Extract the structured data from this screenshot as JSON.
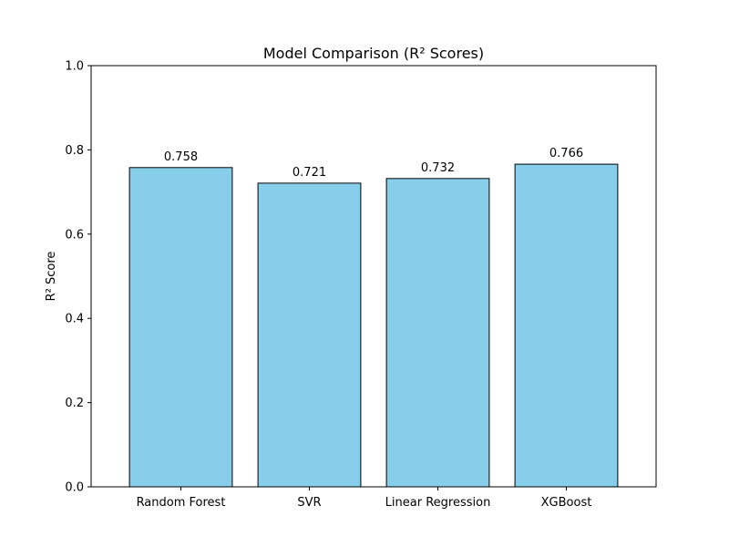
{
  "chart_data": {
    "type": "bar",
    "title": "Model Comparison (R² Scores)",
    "xlabel": "",
    "ylabel": "R² Score",
    "categories": [
      "Random Forest",
      "SVR",
      "Linear Regression",
      "XGBoost"
    ],
    "values": [
      0.758,
      0.721,
      0.732,
      0.766
    ],
    "data_labels": [
      "0.758",
      "0.721",
      "0.732",
      "0.766"
    ],
    "ylim": [
      0,
      1.0
    ],
    "yticks": [
      0.0,
      0.2,
      0.4,
      0.6,
      0.8,
      1.0
    ],
    "ytick_labels": [
      "0.0",
      "0.2",
      "0.4",
      "0.6",
      "0.8",
      "1.0"
    ],
    "grid": false,
    "legend": "none",
    "colors": {
      "bar_fill": "#87ceeb",
      "bar_edge": "#000000",
      "axis": "#000000",
      "background": "#ffffff"
    }
  }
}
